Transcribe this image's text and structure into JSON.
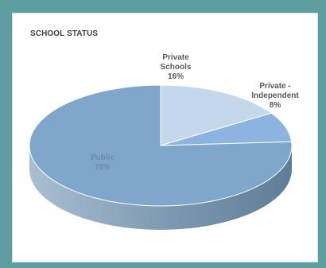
{
  "chart_data": {
    "type": "pie",
    "title": "SCHOOL STATUS",
    "slices": [
      {
        "label": "Private Schools",
        "value": 16,
        "color": "#c5d7ea",
        "label_lines": [
          "Private",
          "Schools",
          "16%"
        ]
      },
      {
        "label": "Private - Independent",
        "value": 8,
        "color": "#8db3e0",
        "label_lines": [
          "Private -",
          "Independent",
          "8%"
        ]
      },
      {
        "label": "Public",
        "value": 76,
        "color": "#7fa6cb",
        "label_lines": [
          "Public",
          "76%"
        ]
      }
    ],
    "colors": {
      "side_dark": "#5e7d98",
      "side_light": "#9cb4c7",
      "label_text": "#5a5a5a",
      "inner_label_text": "#6a8aa8",
      "frame": "#5f9ea0"
    }
  }
}
